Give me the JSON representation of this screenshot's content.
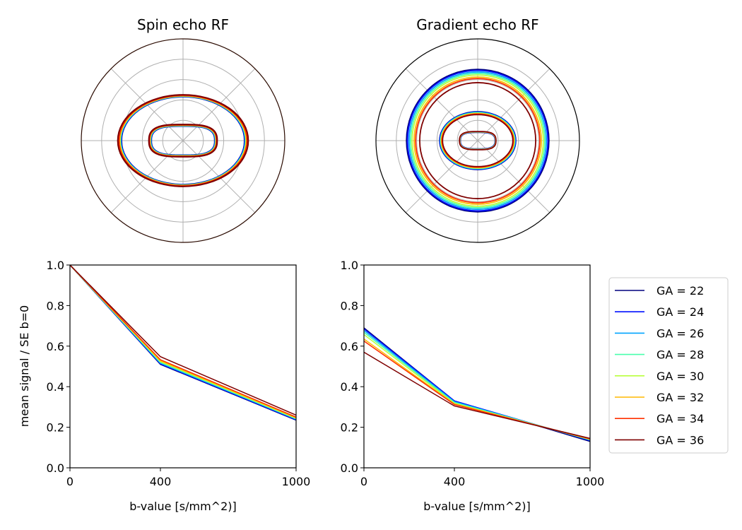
{
  "colors": {
    "GA = 22": "#00007f",
    "GA = 24": "#0010ff",
    "GA = 26": "#00a4ff",
    "GA = 28": "#49ffad",
    "GA = 30": "#b9ff3c",
    "GA = 32": "#ffb900",
    "GA = 34": "#ff3000",
    "GA = 36": "#7f0000",
    "grid": "#b0b0b0",
    "axis": "#000000"
  },
  "chart_data": [
    {
      "type": "polar",
      "title": "Spin echo RF",
      "grid": true,
      "rings": 5,
      "spokes": 8,
      "note": "two closed contours (outer ellipse, inner capsule) per series"
    },
    {
      "type": "polar",
      "title": "Gradient echo RF",
      "grid": true,
      "rings": 5,
      "spokes": 8,
      "note": "three closed contours (outer circle, middle ellipse, inner capsule) per series"
    },
    {
      "type": "line",
      "title": "",
      "xlabel": "b-value [s/mm^2)]",
      "ylabel": "mean signal / SE b=0",
      "x": [
        0,
        400,
        1000
      ],
      "xticks": [
        "0",
        "400",
        "1000"
      ],
      "yticks": [
        "0.0",
        "0.2",
        "0.4",
        "0.6",
        "0.8",
        "1.0"
      ],
      "xlim": [
        0,
        1000
      ],
      "ylim": [
        0,
        1
      ],
      "series": [
        {
          "name": "GA = 22",
          "values": [
            1.0,
            0.51,
            0.235
          ]
        },
        {
          "name": "GA = 24",
          "values": [
            1.0,
            0.513,
            0.237
          ]
        },
        {
          "name": "GA = 26",
          "values": [
            1.0,
            0.516,
            0.24
          ]
        },
        {
          "name": "GA = 28",
          "values": [
            1.0,
            0.52,
            0.242
          ]
        },
        {
          "name": "GA = 30",
          "values": [
            1.0,
            0.524,
            0.244
          ]
        },
        {
          "name": "GA = 32",
          "values": [
            1.0,
            0.528,
            0.247
          ]
        },
        {
          "name": "GA = 34",
          "values": [
            1.0,
            0.533,
            0.25
          ]
        },
        {
          "name": "GA = 36",
          "values": [
            1.0,
            0.548,
            0.26
          ]
        }
      ]
    },
    {
      "type": "line",
      "title": "",
      "xlabel": "b-value [s/mm^2)]",
      "ylabel": "",
      "x": [
        0,
        400,
        1000
      ],
      "xticks": [
        "0",
        "400",
        "1000"
      ],
      "yticks": [
        "0.0",
        "0.2",
        "0.4",
        "0.6",
        "0.8",
        "1.0"
      ],
      "xlim": [
        0,
        1000
      ],
      "ylim": [
        0,
        1
      ],
      "legend": "right",
      "series": [
        {
          "name": "GA = 22",
          "values": [
            0.69,
            0.33,
            0.13
          ]
        },
        {
          "name": "GA = 24",
          "values": [
            0.685,
            0.33,
            0.135
          ]
        },
        {
          "name": "GA = 26",
          "values": [
            0.677,
            0.326,
            0.137
          ]
        },
        {
          "name": "GA = 28",
          "values": [
            0.668,
            0.322,
            0.139
          ]
        },
        {
          "name": "GA = 30",
          "values": [
            0.657,
            0.318,
            0.14
          ]
        },
        {
          "name": "GA = 32",
          "values": [
            0.635,
            0.315,
            0.141
          ]
        },
        {
          "name": "GA = 34",
          "values": [
            0.625,
            0.312,
            0.143
          ]
        },
        {
          "name": "GA = 36",
          "values": [
            0.57,
            0.305,
            0.145
          ]
        }
      ]
    }
  ],
  "polar_shapes": {
    "spin_echo": {
      "outer_rx": [
        0.575,
        0.578,
        0.582,
        0.586,
        0.589,
        0.593,
        0.598,
        0.61
      ],
      "outer_ry": [
        0.43,
        0.432,
        0.434,
        0.436,
        0.438,
        0.44,
        0.443,
        0.45
      ],
      "inner_rx": [
        0.31,
        0.313,
        0.316,
        0.319,
        0.322,
        0.325,
        0.328,
        0.335
      ],
      "inner_ry": [
        0.14,
        0.142,
        0.144,
        0.146,
        0.148,
        0.15,
        0.152,
        0.158
      ]
    },
    "gradient_echo": {
      "outer_r": [
        0.7,
        0.69,
        0.675,
        0.66,
        0.645,
        0.625,
        0.61,
        0.57
      ],
      "mid_rx": [
        0.375,
        0.372,
        0.368,
        0.364,
        0.36,
        0.356,
        0.352,
        0.345
      ],
      "mid_ry": [
        0.285,
        0.282,
        0.278,
        0.274,
        0.27,
        0.266,
        0.262,
        0.255
      ],
      "inner_rx": [
        0.17,
        0.172,
        0.174,
        0.175,
        0.176,
        0.177,
        0.178,
        0.18
      ],
      "inner_ry": [
        0.08,
        0.082,
        0.084,
        0.085,
        0.086,
        0.087,
        0.088,
        0.09
      ]
    }
  }
}
